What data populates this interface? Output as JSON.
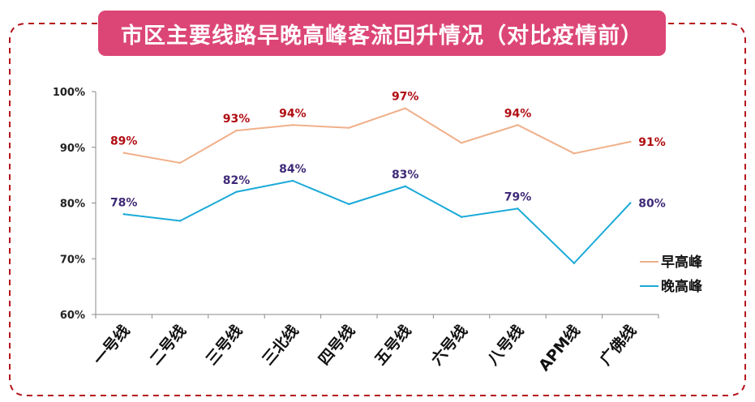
{
  "chart_data": {
    "type": "line",
    "title": "市区主要线路早晚高峰客流回升情况（对比疫情前）",
    "xlabel": "",
    "ylabel": "",
    "categories": [
      "一号线",
      "二号线",
      "三号线",
      "三北线",
      "四号线",
      "五号线",
      "六号线",
      "八号线",
      "APM线",
      "广佛线"
    ],
    "ylim": [
      0.6,
      1.0
    ],
    "yticks": [
      0.6,
      0.7,
      0.8,
      0.9,
      1.0
    ],
    "ytick_labels": [
      "60%",
      "70%",
      "80%",
      "90%",
      "100%"
    ],
    "grid": false,
    "legend_position": "right",
    "series": [
      {
        "name": "早高峰",
        "color": "#f0b08a",
        "label_color": "#b00d12",
        "values": [
          0.89,
          0.872,
          0.93,
          0.94,
          0.935,
          0.97,
          0.908,
          0.94,
          0.889,
          0.91
        ],
        "data_labels": [
          "89%",
          null,
          "93%",
          "94%",
          null,
          "97%",
          null,
          "94%",
          null,
          "91%"
        ]
      },
      {
        "name": "晚高峰",
        "color": "#1aaad8",
        "label_color": "#3f2a78",
        "values": [
          0.78,
          0.768,
          0.82,
          0.84,
          0.798,
          0.83,
          0.775,
          0.79,
          0.692,
          0.8
        ],
        "data_labels": [
          "78%",
          null,
          "82%",
          "84%",
          null,
          "83%",
          null,
          "79%",
          null,
          "80%"
        ]
      }
    ]
  },
  "colors": {
    "title_bg": "#dc4677",
    "frame_border": "#b5121b"
  }
}
